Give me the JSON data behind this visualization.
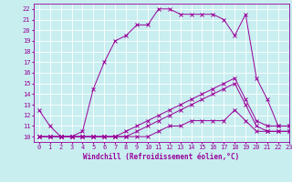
{
  "xlabel": "Windchill (Refroidissement éolien,°C)",
  "bg_color": "#c8eef0",
  "line_color": "#990099",
  "xlim": [
    -0.5,
    23
  ],
  "ylim": [
    9.5,
    22.5
  ],
  "yticks": [
    10,
    11,
    12,
    13,
    14,
    15,
    16,
    17,
    18,
    19,
    20,
    21,
    22
  ],
  "xticks": [
    0,
    1,
    2,
    3,
    4,
    5,
    6,
    7,
    8,
    9,
    10,
    11,
    12,
    13,
    14,
    15,
    16,
    17,
    18,
    19,
    20,
    21,
    22,
    23
  ],
  "series": [
    [
      12.5,
      11.0,
      10.0,
      10.0,
      10.5,
      14.5,
      17.0,
      19.0,
      19.5,
      20.5,
      20.5,
      22.0,
      22.0,
      21.5,
      21.5,
      21.5,
      21.5,
      21.0,
      19.5,
      21.5,
      15.5,
      13.5,
      11.0,
      11.0
    ],
    [
      10.0,
      10.0,
      10.0,
      10.0,
      10.0,
      10.0,
      10.0,
      10.0,
      10.5,
      11.0,
      11.5,
      12.0,
      12.5,
      13.0,
      13.5,
      14.0,
      14.5,
      15.0,
      15.5,
      13.5,
      11.5,
      11.0,
      11.0,
      11.0
    ],
    [
      10.0,
      10.0,
      10.0,
      10.0,
      10.0,
      10.0,
      10.0,
      10.0,
      10.0,
      10.5,
      11.0,
      11.5,
      12.0,
      12.5,
      13.0,
      13.5,
      14.0,
      14.5,
      15.0,
      13.0,
      11.0,
      10.5,
      10.5,
      10.5
    ],
    [
      10.0,
      10.0,
      10.0,
      10.0,
      10.0,
      10.0,
      10.0,
      10.0,
      10.0,
      10.0,
      10.0,
      10.5,
      11.0,
      11.0,
      11.5,
      11.5,
      11.5,
      11.5,
      12.5,
      11.5,
      10.5,
      10.5,
      10.5,
      10.5
    ]
  ],
  "tick_fontsize": 5.0,
  "xlabel_fontsize": 5.5,
  "grid_color": "#ffffff",
  "spine_color": "#990099"
}
